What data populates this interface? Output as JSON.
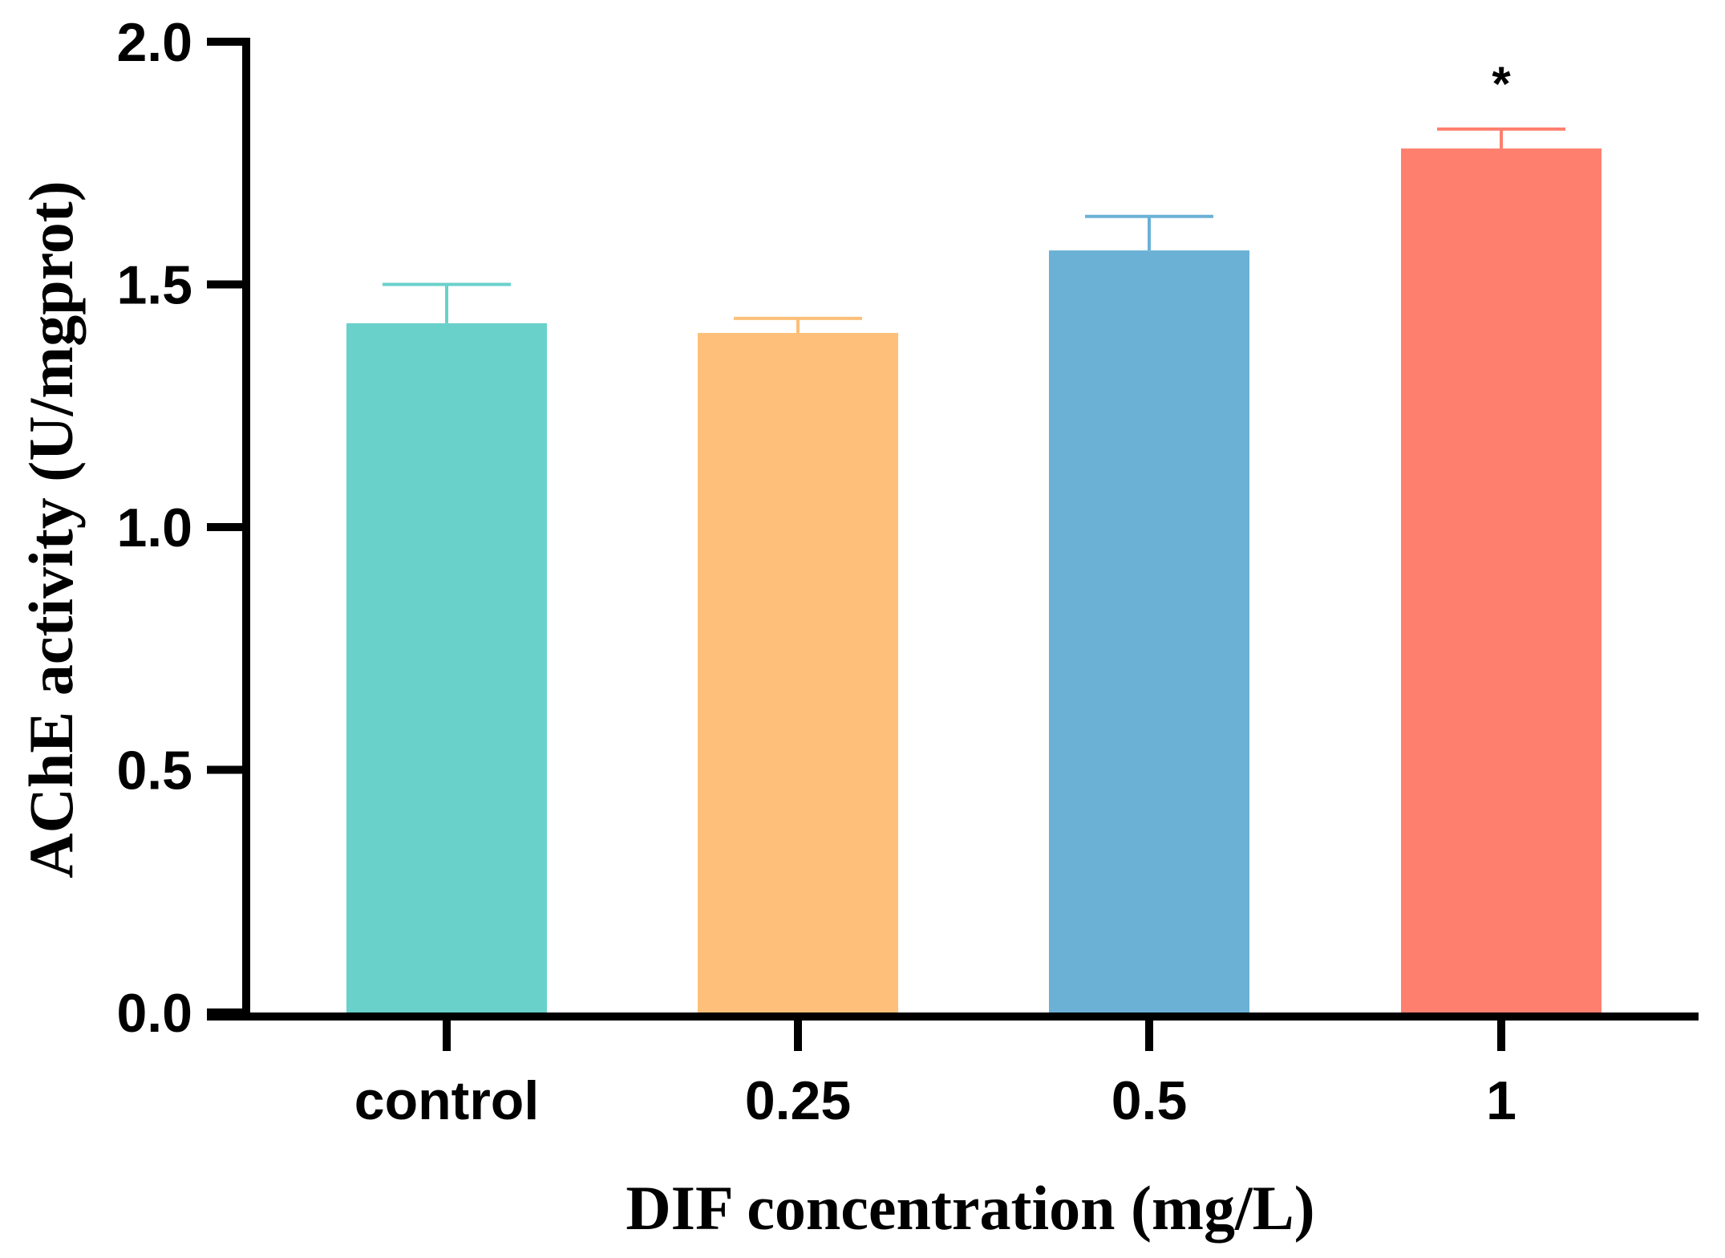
{
  "chart_data": {
    "type": "bar",
    "categories": [
      "control",
      "0.25",
      "0.5",
      "1"
    ],
    "values": [
      1.42,
      1.4,
      1.57,
      1.78
    ],
    "error_upper": [
      1.5,
      1.43,
      1.64,
      1.82
    ],
    "colors": [
      "#69d1ca",
      "#fdbf79",
      "#6bb1d6",
      "#fe7f6e"
    ],
    "annotations": [
      "",
      "",
      "",
      "*"
    ],
    "xlabel": "DIF concentration (mg/L)",
    "ylabel": "AChE activity (U/mgprot)",
    "ylim": [
      0,
      2.0
    ],
    "yticks": [
      0.0,
      0.5,
      1.0,
      1.5,
      2.0
    ],
    "ytick_labels": [
      "0.0",
      "0.5",
      "1.0",
      "1.5",
      "2.0"
    ],
    "grid": false
  }
}
